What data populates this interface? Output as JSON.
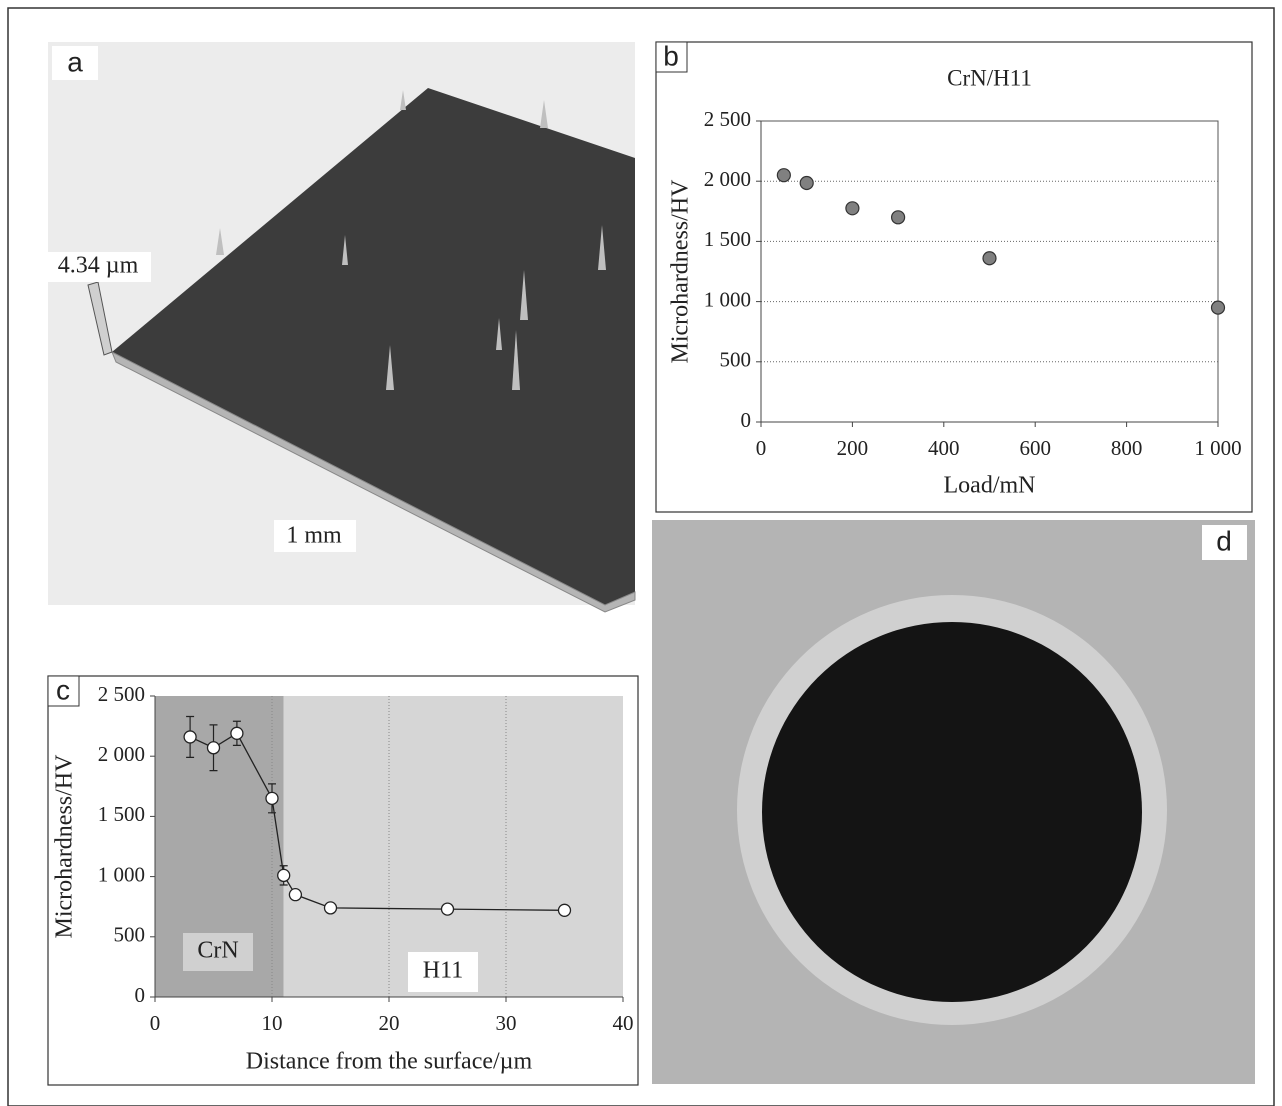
{
  "chart_data": [
    {
      "type": "scatter",
      "panel_label": "b",
      "title": "CrN/H11",
      "x_label": "Load/mN",
      "y_label": "Microhardness/HV",
      "x": [
        50,
        100,
        200,
        300,
        500,
        1000
      ],
      "values": [
        2050,
        1985,
        1775,
        1700,
        1360,
        950
      ],
      "color": "#808080",
      "xlim": [
        0,
        1000
      ],
      "xticks": [
        0,
        200,
        400,
        600,
        800,
        {
          "value": 1000,
          "label": "1 000"
        }
      ],
      "ylim": [
        0,
        2500
      ],
      "yticks": [
        0,
        500,
        {
          "value": 1000,
          "label": "1 000"
        },
        {
          "value": 1500,
          "label": "1 500"
        },
        {
          "value": 2000,
          "label": "2 000"
        },
        {
          "value": 2500,
          "label": "2 500"
        }
      ],
      "grid": "y"
    },
    {
      "type": "line",
      "panel_label": "c",
      "x_label": "Distance from the surface/µm",
      "y_label": "Microhardness/HV",
      "x": [
        3,
        5,
        7,
        10,
        11,
        12,
        15,
        25,
        35
      ],
      "values": [
        2160,
        2070,
        2190,
        1650,
        1010,
        850,
        740,
        730,
        720
      ],
      "errors": [
        170,
        190,
        100,
        120,
        80,
        30,
        30,
        40,
        20
      ],
      "color": "#ffffff",
      "regions": [
        {
          "label": "CrN",
          "from": 0,
          "to": 11,
          "color": "#a8a8a8"
        },
        {
          "label": "H11",
          "from": 11,
          "to": 40,
          "color": "#d6d6d6"
        }
      ],
      "xlim": [
        0,
        40
      ],
      "xticks": [
        0,
        10,
        20,
        30,
        40
      ],
      "ylim": [
        0,
        2500
      ],
      "yticks": [
        0,
        500,
        {
          "value": 1000,
          "label": "1 000"
        },
        {
          "value": 1500,
          "label": "1 500"
        },
        {
          "value": 2000,
          "label": "2 000"
        },
        {
          "value": 2500,
          "label": "2 500"
        }
      ],
      "grid": "x"
    }
  ],
  "panels": {
    "a": {
      "label": "a",
      "annotations": [
        "4.34 µm",
        "1 mm"
      ]
    },
    "d": {
      "label": "d"
    }
  }
}
